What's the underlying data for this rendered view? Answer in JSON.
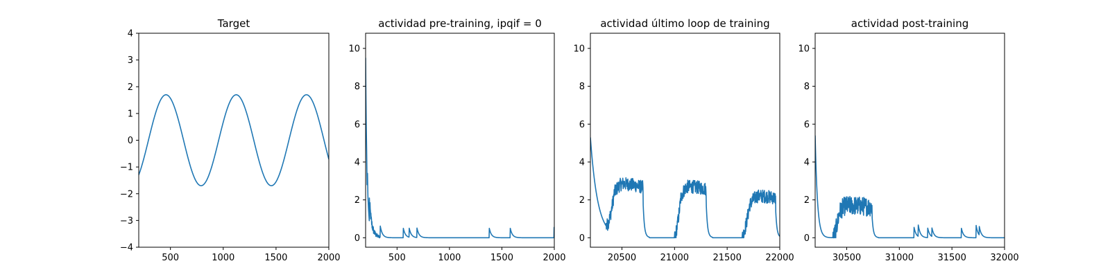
{
  "chart_data": [
    {
      "type": "line",
      "title": "Target",
      "xlim": [
        200,
        2000
      ],
      "ylim": [
        -4,
        4
      ],
      "xticks": [
        500,
        1000,
        1500,
        2000
      ],
      "yticks": [
        -4,
        -3,
        -2,
        -1,
        0,
        1,
        2,
        3,
        4
      ],
      "ytick_labels": [
        "−4",
        "−3",
        "−2",
        "−1",
        "0",
        "1",
        "2",
        "3",
        "4"
      ],
      "series_color": "#1f77b4",
      "sine": {
        "amplitude": 1.7,
        "period": 665,
        "peak_x": 458
      },
      "x_end": 2000
    },
    {
      "type": "line",
      "title": "actividad pre-training, ipqif = 0",
      "xlim": [
        200,
        2000
      ],
      "ylim": [
        -0.5,
        10.8
      ],
      "xticks": [
        500,
        1000,
        1500,
        2000
      ],
      "yticks": [
        0,
        2,
        4,
        6,
        8,
        10
      ],
      "series_color": "#1f77b4",
      "start": {
        "x": 200,
        "y": 9.5
      },
      "decay_points": [
        [
          203,
          7.5
        ],
        [
          206,
          6.0
        ],
        [
          210,
          4.6
        ],
        [
          214,
          2.8
        ],
        [
          218,
          3.4
        ],
        [
          222,
          2.2
        ],
        [
          228,
          1.5
        ],
        [
          235,
          0.9
        ]
      ],
      "noise_region": [
        235,
        340
      ],
      "noise_amp": 0.45,
      "decay": 22,
      "spikes": [
        {
          "x": 340,
          "h": 0.6
        },
        {
          "x": 560,
          "h": 0.5
        },
        {
          "x": 615,
          "h": 0.5
        },
        {
          "x": 690,
          "h": 0.5
        },
        {
          "x": 1380,
          "h": 0.5
        },
        {
          "x": 1580,
          "h": 0.5
        },
        {
          "x": 1998,
          "h": 0.55
        }
      ],
      "x_end": 2000
    },
    {
      "type": "line",
      "title": "actividad último loop de training",
      "xlim": [
        20200,
        22000
      ],
      "ylim": [
        -0.5,
        10.8
      ],
      "xticks": [
        20500,
        21000,
        21500,
        22000
      ],
      "yticks": [
        0,
        2,
        4,
        6,
        8,
        10
      ],
      "series_color": "#1f77b4",
      "start": {
        "x": 20200,
        "y": 5.3
      },
      "decay": 70,
      "bumps": [
        {
          "start": 20350,
          "peak": 20520,
          "end": 20700,
          "amp": 2.8
        },
        {
          "start": 21000,
          "peak": 21130,
          "end": 21300,
          "amp": 2.7
        },
        {
          "start": 21640,
          "peak": 21800,
          "end": 21960,
          "amp": 2.2
        }
      ],
      "noise_amp": 0.35,
      "x_end": 22000
    },
    {
      "type": "line",
      "title": "actividad post-training",
      "xlim": [
        30200,
        32000
      ],
      "ylim": [
        -0.5,
        10.8
      ],
      "xticks": [
        30500,
        31000,
        31500,
        32000
      ],
      "yticks": [
        0,
        2,
        4,
        6,
        8,
        10
      ],
      "series_color": "#1f77b4",
      "start": {
        "x": 30200,
        "y": 5.4
      },
      "decay": 22,
      "bumps": [
        {
          "start": 30370,
          "peak": 30500,
          "end": 30740,
          "amp": 1.7
        }
      ],
      "noise_amp": 0.5,
      "spikes": [
        {
          "x": 31140,
          "h": 0.55
        },
        {
          "x": 31180,
          "h": 0.6
        },
        {
          "x": 31270,
          "h": 0.5
        },
        {
          "x": 31310,
          "h": 0.45
        },
        {
          "x": 31590,
          "h": 0.5
        },
        {
          "x": 31730,
          "h": 0.65
        },
        {
          "x": 31760,
          "h": 0.45
        }
      ],
      "x_end": 32000
    }
  ]
}
